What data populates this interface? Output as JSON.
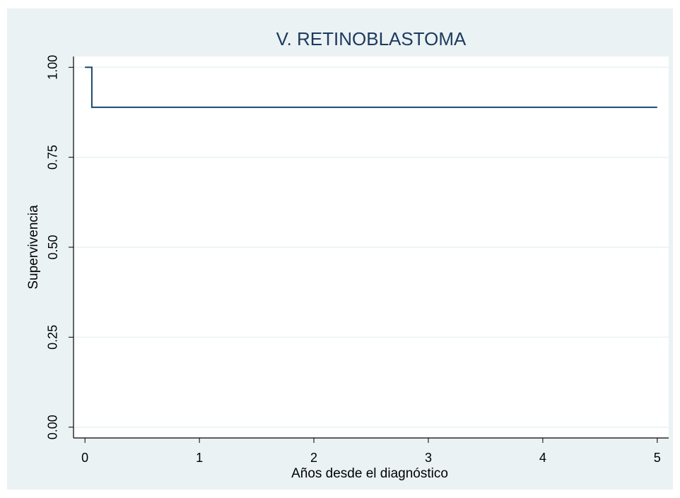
{
  "chart_data": {
    "type": "line",
    "step": "post",
    "title": "V. RETINOBLASTOMA",
    "x_label": "Años desde el diagnóstico",
    "y_label": "Supervivencia",
    "x": [
      0,
      0.06,
      5
    ],
    "values": [
      1,
      0.889,
      0.889
    ],
    "color": "#1a476f",
    "xlim": [
      -0.1,
      5.1
    ],
    "ylim": [
      -0.03,
      1.03
    ],
    "xticks": [
      0,
      1,
      2,
      3,
      4,
      5
    ],
    "yticks": [
      {
        "value": 0,
        "label": "0.00"
      },
      {
        "value": 0.25,
        "label": "0.25"
      },
      {
        "value": 0.5,
        "label": "0.50"
      },
      {
        "value": 0.75,
        "label": "0.75"
      },
      {
        "value": 1,
        "label": "1.00"
      }
    ],
    "grid": true
  }
}
